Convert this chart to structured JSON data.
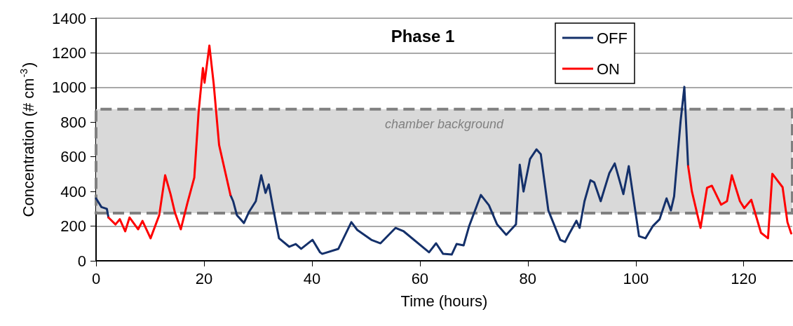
{
  "chart_data": {
    "type": "line",
    "title": "Phase 1",
    "xlabel": "Time (hours)",
    "ylabel": "Concentration (# cm$^{-3}$)",
    "xlim": [
      0,
      129
    ],
    "xticks": [
      0,
      20,
      40,
      60,
      80,
      100,
      120
    ],
    "ylim": [
      0,
      1400
    ],
    "yticks": [
      0,
      200,
      400,
      600,
      800,
      1000,
      1200,
      1400
    ],
    "grid": "y",
    "legend": "top right",
    "marker": "none",
    "line_style": "solid",
    "bands": [
      {
        "axis": "y",
        "from": 275,
        "to": 875,
        "label": "chamber background",
        "color": "#d9d9d9"
      }
    ],
    "series": [
      {
        "name": "OFF",
        "color": "#14306a",
        "x": [
          0,
          1,
          2,
          2.3,
          15,
          24.9,
          25.4,
          26.1,
          27.4,
          28.3,
          29.6,
          30.6,
          31.4,
          32.0,
          32.8,
          33.9,
          35.8,
          37,
          38,
          40.1,
          41.5,
          41.9,
          44.9,
          47.3,
          48.4,
          51,
          52.7,
          55.5,
          57,
          61.7,
          63,
          64.3,
          65.9,
          66.8,
          68.1,
          69.1,
          71.3,
          72.8,
          74.3,
          76,
          77.8,
          78.5,
          79.2,
          80.4,
          81.6,
          82.4,
          83.8,
          86,
          86.9,
          87.7,
          89,
          89.6,
          90.5,
          91.6,
          92.3,
          93.5,
          95.1,
          96.1,
          97.7,
          98.7,
          100.6,
          101.8,
          103.2,
          104.4,
          105.7,
          106.5,
          107.1,
          108.3,
          109,
          109.7
        ],
        "values": [
          360,
          310,
          300,
          250,
          null,
          380,
          344,
          263,
          218,
          280,
          344,
          494,
          392,
          441,
          304,
          130,
          81,
          97,
          69,
          121,
          49,
          40,
          69,
          223,
          178,
          121,
          101,
          190,
          170,
          49,
          101,
          40,
          36,
          97,
          89,
          198,
          380,
          320,
          210,
          150,
          210,
          554,
          400,
          587,
          643,
          615,
          291,
          121,
          109,
          158,
          231,
          190,
          344,
          465,
          453,
          344,
          506,
          562,
          385,
          546,
          142,
          130,
          202,
          239,
          360,
          291,
          372,
          805,
          1004,
          546
        ]
      },
      {
        "name": "ON",
        "color": "#ff0000",
        "x": [
          2.3,
          3.6,
          4.4,
          5.4,
          6.2,
          7.8,
          8.6,
          10.1,
          11.7,
          12.8,
          13.8,
          14.6,
          15.7,
          16.9,
          18.2,
          19,
          19.8,
          20.1,
          21,
          21.8,
          22.8,
          24.9,
          60,
          109.7,
          110.4,
          112,
          113.2,
          114.1,
          115.8,
          116.9,
          117.8,
          119.3,
          120.1,
          121.4,
          123.2,
          124.5,
          125.3,
          127.2,
          128.1,
          128.8
        ],
        "values": [
          250,
          210,
          240,
          170,
          250,
          182,
          230,
          130,
          263,
          494,
          385,
          280,
          182,
          330,
          480,
          858,
          1113,
          1028,
          1242,
          1020,
          668,
          380,
          null,
          546,
          400,
          190,
          421,
          433,
          324,
          344,
          494,
          344,
          304,
          352,
          162,
          130,
          502,
          425,
          223,
          158
        ]
      }
    ]
  }
}
